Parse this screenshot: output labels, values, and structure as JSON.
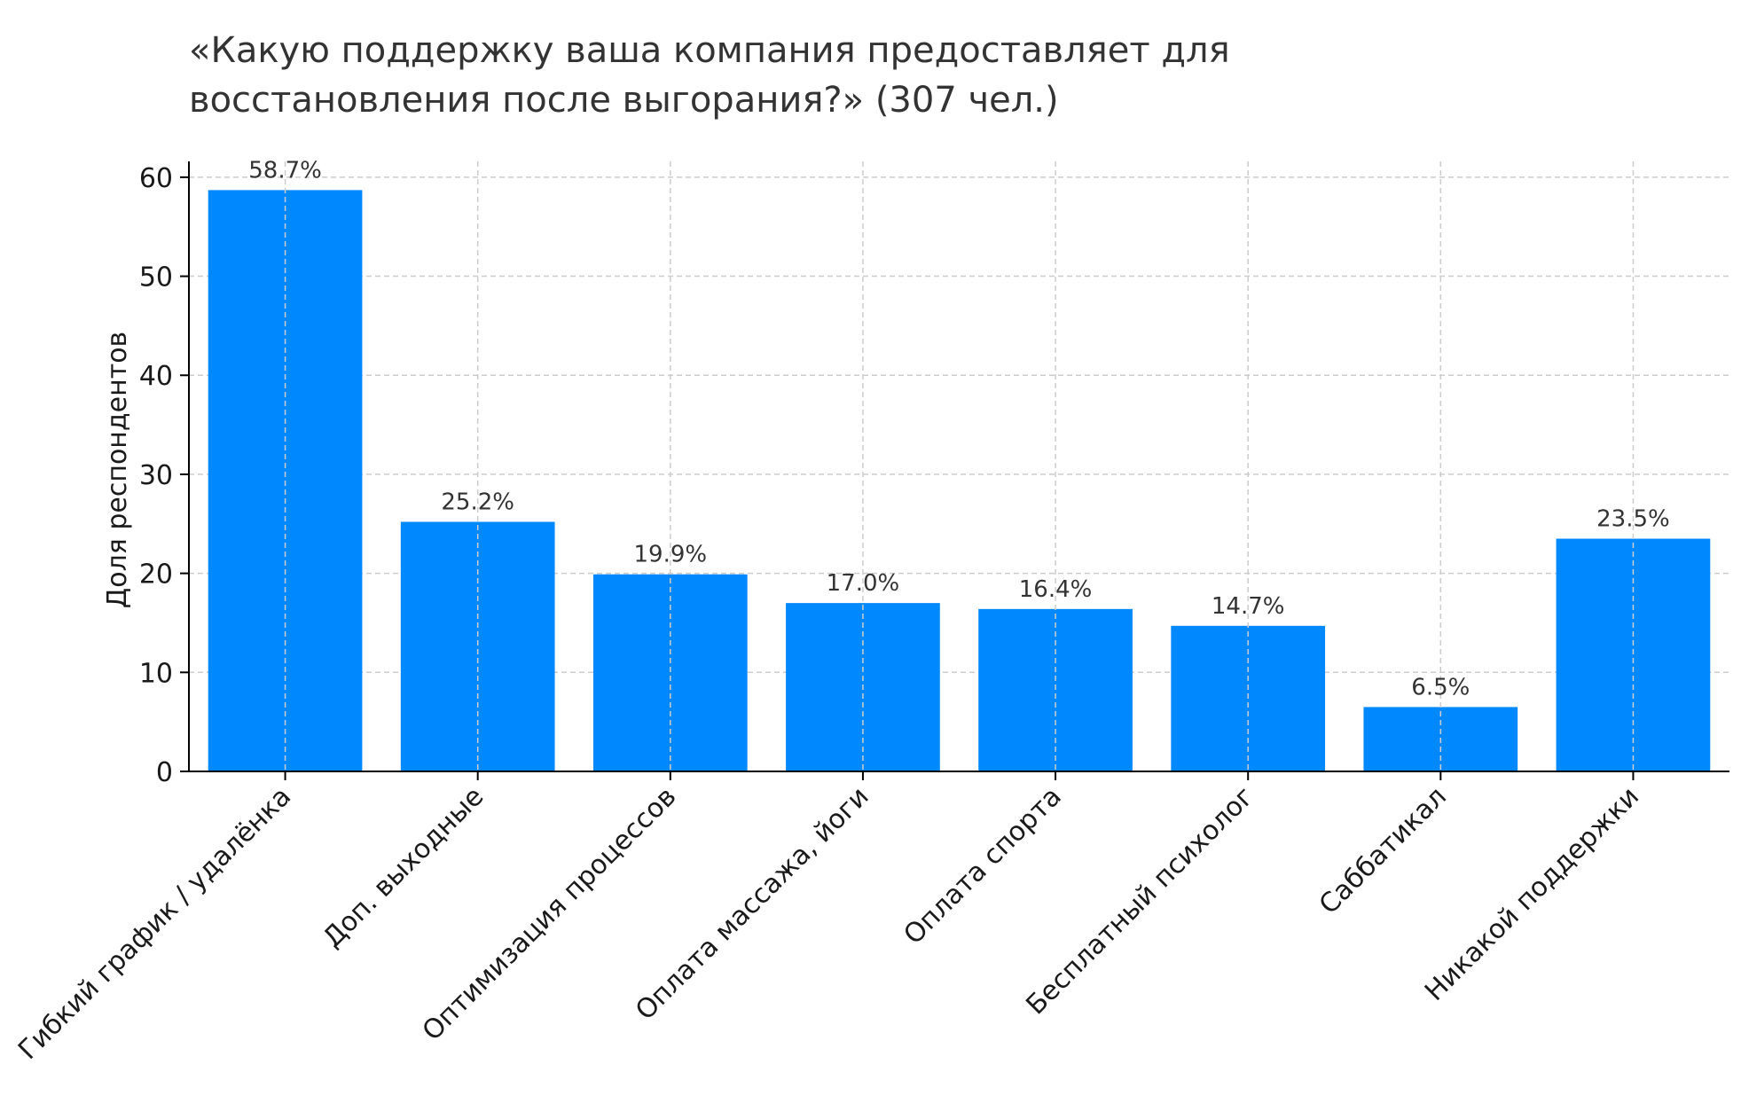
{
  "chart_data": {
    "type": "bar",
    "title_lines": [
      "«Какую поддержку ваша компания предоставляет для",
      "восстановления после выгорания?» (307 чел.)"
    ],
    "xlabel": "",
    "ylabel": "Доля респондентов",
    "ylim": [
      0,
      61.6
    ],
    "yticks": [
      "0",
      "10",
      "20",
      "30",
      "40",
      "50",
      "60"
    ],
    "categories": [
      "Гибкий график / удалёнка",
      "Доп. выходные",
      "Оптимизация процессов",
      "Оплата массажа, йоги",
      "Оплата спорта",
      "Бесплатный психолог",
      "Саббатикал",
      "Никакой поддержки"
    ],
    "values": [
      58.7,
      25.2,
      19.9,
      17.0,
      16.4,
      14.7,
      6.5,
      23.5
    ],
    "data_labels": [
      "58.7%",
      "25.2%",
      "19.9%",
      "17.0%",
      "16.4%",
      "14.7%",
      "6.5%",
      "23.5%"
    ],
    "grid": true,
    "bar_color": "#0088ff",
    "grid_color": "#cccccc",
    "axis_color": "#000000"
  }
}
